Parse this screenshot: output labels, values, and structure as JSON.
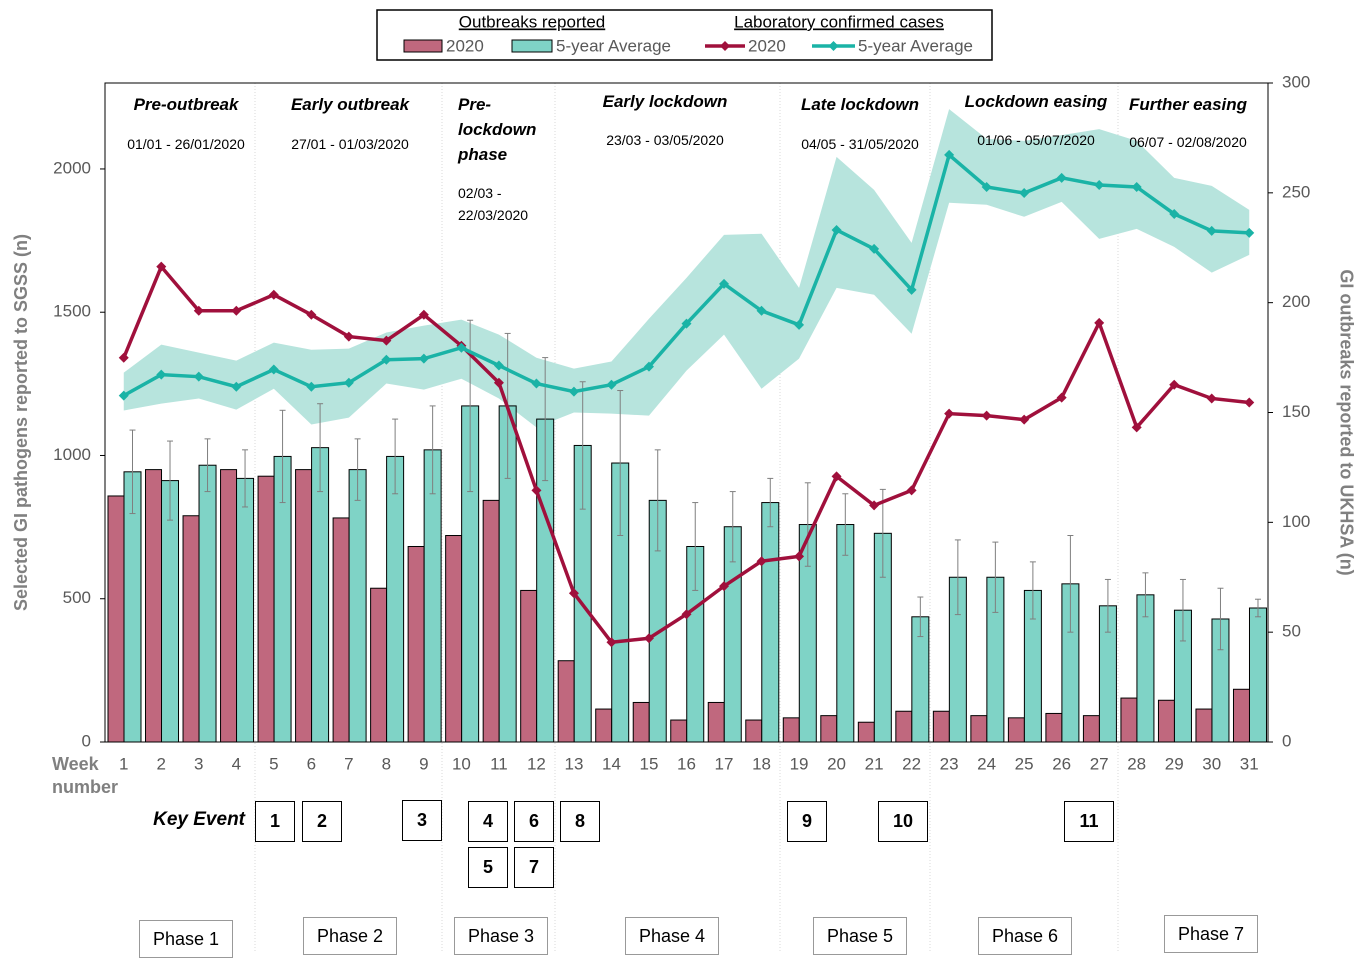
{
  "chart_data": {
    "type": "combo",
    "y_label": "Selected GI pathogens reported to SGSS  (n)",
    "y2_label": "GI outbreaks reported to UKHSA  (n)",
    "x_label": "Week number",
    "legend_groups": [
      "Outbreaks reported",
      "Laboratory confirmed cases"
    ],
    "categories": [
      1,
      2,
      3,
      4,
      5,
      6,
      7,
      8,
      9,
      10,
      11,
      12,
      13,
      14,
      15,
      16,
      17,
      18,
      19,
      20,
      21,
      22,
      23,
      24,
      25,
      26,
      27,
      28,
      29,
      30,
      31
    ],
    "ylim": [
      0,
      2300
    ],
    "yticks": [
      0,
      500,
      1000,
      1500,
      2000
    ],
    "y2lim": [
      0,
      300
    ],
    "y2ticks": [
      0,
      50,
      100,
      150,
      200,
      250,
      300
    ],
    "series": [
      {
        "name": "2020",
        "type": "bar",
        "axis": "y2",
        "legend_group": 0,
        "color": "#c0687e",
        "values": [
          112,
          124,
          103,
          124,
          121,
          124,
          102,
          70,
          89,
          94,
          110,
          69,
          37,
          15,
          18,
          10,
          18,
          10,
          11,
          12,
          9,
          14,
          14,
          12,
          11,
          13,
          12,
          20,
          19,
          15,
          24
        ]
      },
      {
        "name": "5-year Average",
        "type": "bar",
        "axis": "y2",
        "legend_group": 0,
        "color": "#7fd3c6",
        "values": [
          123,
          119,
          126,
          120,
          130,
          134,
          124,
          130,
          133,
          153,
          153,
          147,
          135,
          127,
          110,
          89,
          98,
          109,
          99,
          99,
          95,
          57,
          75,
          75,
          69,
          72,
          62,
          67,
          60,
          56,
          61
        ],
        "errors": [
          19,
          18,
          12,
          13,
          21,
          20,
          14,
          17,
          20,
          39,
          33,
          28,
          29,
          33,
          23,
          20,
          16,
          11,
          19,
          14,
          20,
          9,
          17,
          16,
          13,
          22,
          12,
          10,
          14,
          14,
          4
        ]
      },
      {
        "name": "2020",
        "type": "line",
        "legend_group": 1,
        "color": "#a0103c",
        "values": [
          1341,
          1659,
          1505,
          1505,
          1561,
          1491,
          1415,
          1401,
          1491,
          1383,
          1254,
          878,
          519,
          348,
          362,
          446,
          544,
          631,
          648,
          927,
          826,
          878,
          1146,
          1139,
          1125,
          1202,
          1463,
          1098,
          1247,
          1199,
          1185
        ]
      },
      {
        "name": "5-year Average",
        "type": "line",
        "legend_group": 1,
        "color": "#1ab3a6",
        "band_color": "#b7e4dd",
        "values": [
          1209,
          1282,
          1275,
          1240,
          1300,
          1240,
          1254,
          1334,
          1338,
          1376,
          1314,
          1251,
          1223,
          1247,
          1310,
          1460,
          1599,
          1505,
          1456,
          1787,
          1721,
          1578,
          2049,
          1937,
          1916,
          1969,
          1944,
          1937,
          1843,
          1784,
          1777
        ],
        "upper": [
          1289,
          1387,
          1359,
          1331,
          1394,
          1369,
          1373,
          1429,
          1453,
          1474,
          1422,
          1341,
          1303,
          1328,
          1477,
          1620,
          1770,
          1774,
          1585,
          2042,
          1927,
          1742,
          2209,
          2105,
          2098,
          2118,
          2139,
          2098,
          1969,
          1941,
          1857
        ],
        "lower": [
          1157,
          1181,
          1199,
          1160,
          1233,
          1108,
          1132,
          1251,
          1230,
          1268,
          1199,
          1098,
          1150,
          1146,
          1139,
          1296,
          1422,
          1233,
          1338,
          1585,
          1561,
          1425,
          1882,
          1875,
          1833,
          1885,
          1756,
          1791,
          1728,
          1638,
          1700
        ]
      }
    ],
    "phases": [
      {
        "title": "Pre-outbreak",
        "dates": "01/01 - 26/01/2020",
        "label": "Phase 1"
      },
      {
        "title": "Early outbreak",
        "dates": "27/01 - 01/03/2020",
        "label": "Phase 2"
      },
      {
        "title": "Pre-lockdown phase",
        "dates": "02/03 - 22/03/2020",
        "label": "Phase 3"
      },
      {
        "title": "Early lockdown",
        "dates": "23/03 - 03/05/2020",
        "label": "Phase 4"
      },
      {
        "title": "Late lockdown",
        "dates": "04/05 - 31/05/2020",
        "label": "Phase 5"
      },
      {
        "title": "Lockdown easing",
        "dates": "01/06 - 05/07/2020",
        "label": "Phase 6"
      },
      {
        "title": "Further easing",
        "dates": "06/07 - 02/08/2020",
        "label": "Phase 7"
      }
    ],
    "key_event_label": "Key Event",
    "key_events": [
      1,
      2,
      3,
      4,
      5,
      6,
      7,
      8,
      9,
      10,
      11
    ]
  }
}
